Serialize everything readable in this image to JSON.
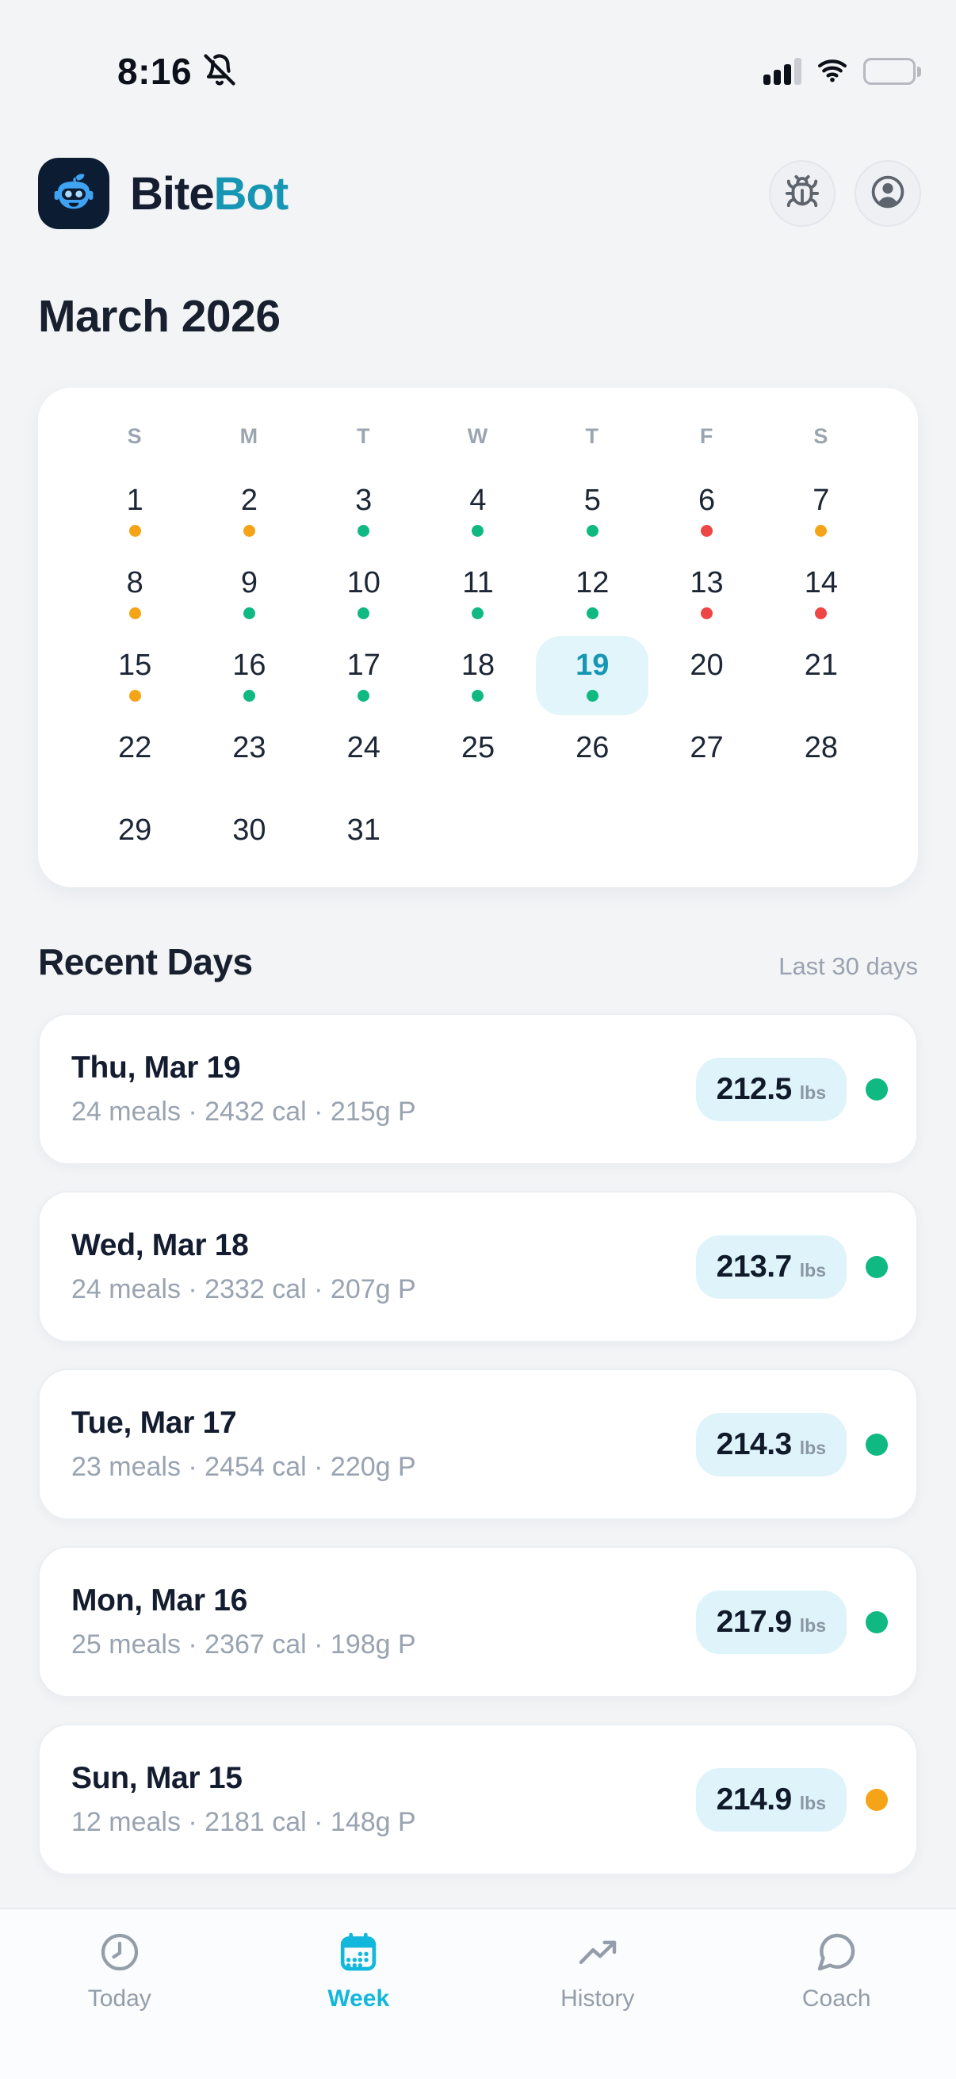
{
  "status_bar": {
    "time": "8:16",
    "icons": [
      "bell-off-icon",
      "cellular-signal-icon",
      "wifi-icon",
      "battery-icon"
    ]
  },
  "header": {
    "app_name_primary": "Bite",
    "app_name_secondary": "Bot",
    "logo_icon": "robot-icon",
    "actions": [
      {
        "icon": "bug-icon"
      },
      {
        "icon": "user-icon"
      }
    ]
  },
  "month_title": "March 2026",
  "calendar": {
    "day_headers": [
      "S",
      "M",
      "T",
      "W",
      "T",
      "F",
      "S"
    ],
    "selected_day": 19,
    "weeks": [
      [
        {
          "day": 1,
          "status": "orange"
        },
        {
          "day": 2,
          "status": "orange"
        },
        {
          "day": 3,
          "status": "green"
        },
        {
          "day": 4,
          "status": "green"
        },
        {
          "day": 5,
          "status": "green"
        },
        {
          "day": 6,
          "status": "red"
        },
        {
          "day": 7,
          "status": "orange"
        }
      ],
      [
        {
          "day": 8,
          "status": "orange"
        },
        {
          "day": 9,
          "status": "green"
        },
        {
          "day": 10,
          "status": "green"
        },
        {
          "day": 11,
          "status": "green"
        },
        {
          "day": 12,
          "status": "green"
        },
        {
          "day": 13,
          "status": "red"
        },
        {
          "day": 14,
          "status": "red"
        }
      ],
      [
        {
          "day": 15,
          "status": "orange"
        },
        {
          "day": 16,
          "status": "green"
        },
        {
          "day": 17,
          "status": "green"
        },
        {
          "day": 18,
          "status": "green"
        },
        {
          "day": 19,
          "status": "green"
        },
        {
          "day": 20,
          "status": null
        },
        {
          "day": 21,
          "status": null
        }
      ],
      [
        {
          "day": 22,
          "status": null
        },
        {
          "day": 23,
          "status": null
        },
        {
          "day": 24,
          "status": null
        },
        {
          "day": 25,
          "status": null
        },
        {
          "day": 26,
          "status": null
        },
        {
          "day": 27,
          "status": null
        },
        {
          "day": 28,
          "status": null
        }
      ],
      [
        {
          "day": 29,
          "status": null
        },
        {
          "day": 30,
          "status": null
        },
        {
          "day": 31,
          "status": null
        },
        null,
        null,
        null,
        null
      ]
    ]
  },
  "recent": {
    "title": "Recent Days",
    "subtitle": "Last 30 days",
    "days": [
      {
        "date": "Thu, Mar 19",
        "meta": "24 meals · 2432 cal · 215g P",
        "weight": "212.5",
        "unit": "lbs",
        "status": "green"
      },
      {
        "date": "Wed, Mar 18",
        "meta": "24 meals · 2332 cal · 207g P",
        "weight": "213.7",
        "unit": "lbs",
        "status": "green"
      },
      {
        "date": "Tue, Mar 17",
        "meta": "23 meals · 2454 cal · 220g P",
        "weight": "214.3",
        "unit": "lbs",
        "status": "green"
      },
      {
        "date": "Mon, Mar 16",
        "meta": "25 meals · 2367 cal · 198g P",
        "weight": "217.9",
        "unit": "lbs",
        "status": "green"
      },
      {
        "date": "Sun, Mar 15",
        "meta": "12 meals · 2181 cal · 148g P",
        "weight": "214.9",
        "unit": "lbs",
        "status": "orange"
      }
    ]
  },
  "tab_bar": {
    "tabs": [
      {
        "label": "Today",
        "icon": "icon-clock",
        "active": false
      },
      {
        "label": "Week",
        "icon": "icon-calendar",
        "active": true
      },
      {
        "label": "History",
        "icon": "icon-trend",
        "active": false
      },
      {
        "label": "Coach",
        "icon": "icon-chat",
        "active": false
      }
    ]
  },
  "colors": {
    "accent": "#12b7dc",
    "teal": "#1796b4",
    "green": "#10b981",
    "orange": "#f5a418",
    "red": "#ee4545",
    "pill_bg": "#def3fa",
    "selected_bg": "#e1f5fb"
  }
}
